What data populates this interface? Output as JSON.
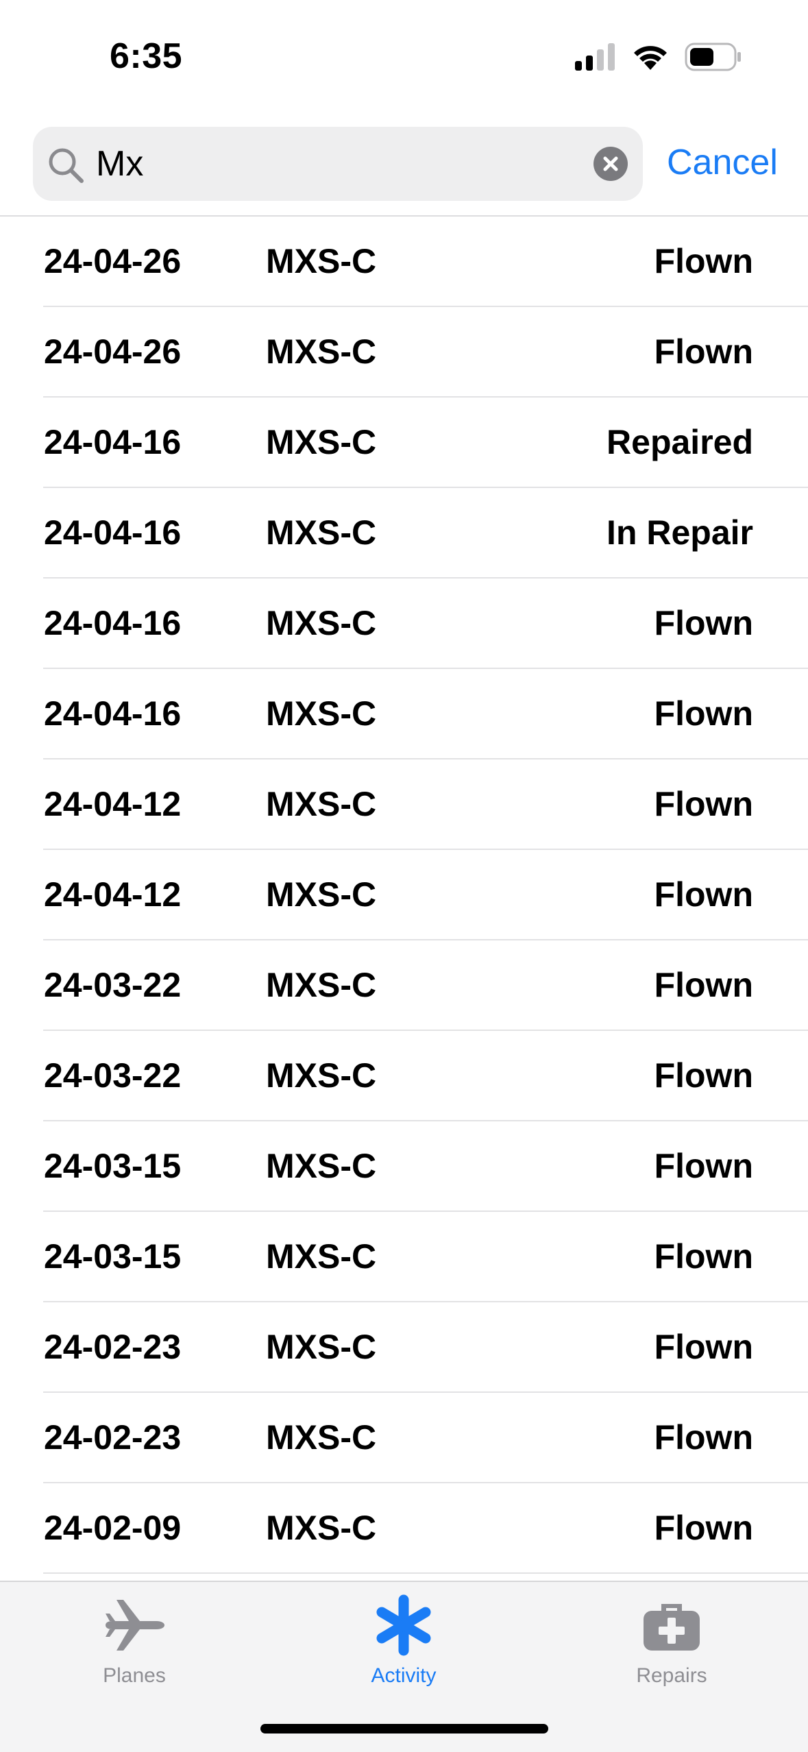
{
  "status_bar": {
    "time": "6:35"
  },
  "search": {
    "query": "Mx",
    "cancel_label": "Cancel"
  },
  "list": {
    "rows": [
      {
        "date": "24-04-26",
        "plane": "MXS-C",
        "status": "Flown"
      },
      {
        "date": "24-04-26",
        "plane": "MXS-C",
        "status": "Flown"
      },
      {
        "date": "24-04-16",
        "plane": "MXS-C",
        "status": "Repaired"
      },
      {
        "date": "24-04-16",
        "plane": "MXS-C",
        "status": "In Repair"
      },
      {
        "date": "24-04-16",
        "plane": "MXS-C",
        "status": "Flown"
      },
      {
        "date": "24-04-16",
        "plane": "MXS-C",
        "status": "Flown"
      },
      {
        "date": "24-04-12",
        "plane": "MXS-C",
        "status": "Flown"
      },
      {
        "date": "24-04-12",
        "plane": "MXS-C",
        "status": "Flown"
      },
      {
        "date": "24-03-22",
        "plane": "MXS-C",
        "status": "Flown"
      },
      {
        "date": "24-03-22",
        "plane": "MXS-C",
        "status": "Flown"
      },
      {
        "date": "24-03-15",
        "plane": "MXS-C",
        "status": "Flown"
      },
      {
        "date": "24-03-15",
        "plane": "MXS-C",
        "status": "Flown"
      },
      {
        "date": "24-02-23",
        "plane": "MXS-C",
        "status": "Flown"
      },
      {
        "date": "24-02-23",
        "plane": "MXS-C",
        "status": "Flown"
      },
      {
        "date": "24-02-09",
        "plane": "MXS-C",
        "status": "Flown"
      }
    ]
  },
  "tab_bar": {
    "tabs": [
      {
        "label": "Planes",
        "icon": "airplane-icon",
        "active": false
      },
      {
        "label": "Activity",
        "icon": "asterisk-icon",
        "active": true
      },
      {
        "label": "Repairs",
        "icon": "medical-kit-icon",
        "active": false
      }
    ]
  },
  "colors": {
    "accent": "#1a7cf5",
    "inactive_tab": "#8e8e93",
    "search_field_bg": "#eeeeef"
  }
}
